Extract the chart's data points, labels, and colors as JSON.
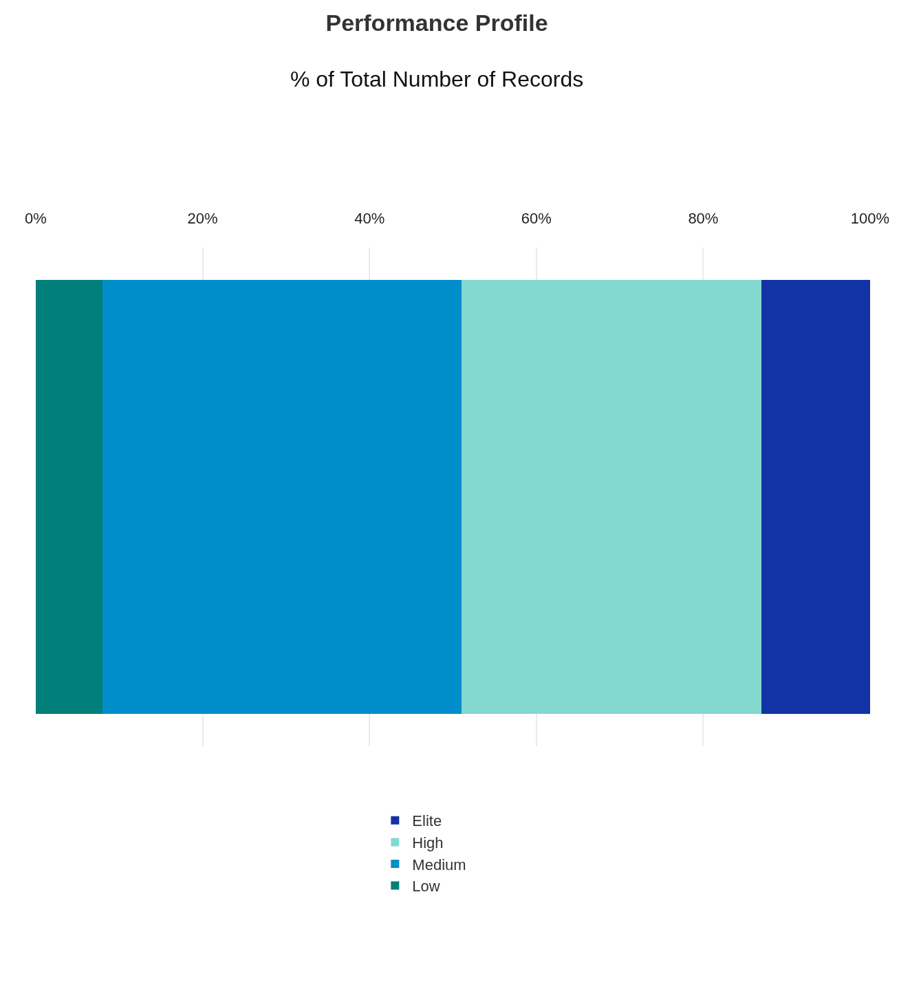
{
  "chart_data": {
    "type": "bar",
    "title": "Performance Profile",
    "subtitle": "% of Total Number of Records",
    "orientation": "horizontal",
    "stacked": true,
    "categories": [
      null
    ],
    "series": [
      {
        "name": "Low",
        "color": "#007f7b",
        "values": [
          8
        ]
      },
      {
        "name": "Medium",
        "color": "#008ecb",
        "values": [
          43
        ]
      },
      {
        "name": "High",
        "color": "#83d9d0",
        "values": [
          36
        ]
      },
      {
        "name": "Elite",
        "color": "#1133a5",
        "values": [
          13
        ]
      }
    ],
    "xlim": [
      0,
      100
    ],
    "xticks": [
      {
        "value": 0,
        "label": "0%"
      },
      {
        "value": 20,
        "label": "20%"
      },
      {
        "value": 40,
        "label": "40%"
      },
      {
        "value": 60,
        "label": "60%"
      },
      {
        "value": 80,
        "label": "80%"
      },
      {
        "value": 100,
        "label": "100%"
      }
    ],
    "grid": "x",
    "legend": "bottom",
    "tick_labels": "x"
  }
}
